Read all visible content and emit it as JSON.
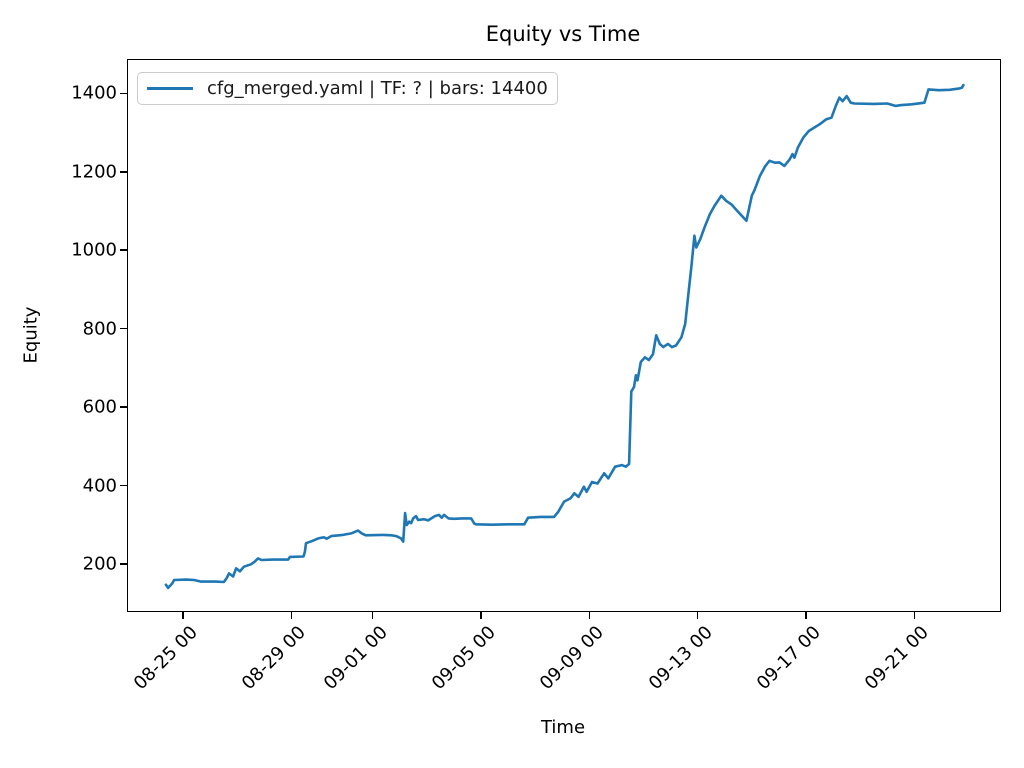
{
  "chart_data": {
    "type": "line",
    "title": "Equity vs Time",
    "xlabel": "Time",
    "ylabel": "Equity",
    "grid": false,
    "legend_position": "upper left",
    "line_color": "#1f77b4",
    "x_unit": "days since 08-25 00:00",
    "xlim": [
      -2.03,
      30.16
    ],
    "ylim": [
      80,
      1485
    ],
    "yticks": [
      200,
      400,
      600,
      800,
      1000,
      1200,
      1400
    ],
    "xticks": {
      "positions": [
        0,
        4,
        7,
        11,
        15,
        19,
        23,
        27
      ],
      "labels": [
        "08-25 00",
        "08-29 00",
        "09-01 00",
        "09-05 00",
        "09-09 00",
        "09-13 00",
        "09-17 00",
        "09-21 00"
      ]
    },
    "series": [
      {
        "name": "cfg_merged.yaml | TF: ? | bars: 14400",
        "points": [
          [
            -0.63,
            147
          ],
          [
            -0.55,
            139
          ],
          [
            -0.4,
            150
          ],
          [
            -0.33,
            159
          ],
          [
            0.13,
            160
          ],
          [
            0.41,
            159
          ],
          [
            0.66,
            155
          ],
          [
            1.2,
            155
          ],
          [
            1.51,
            154
          ],
          [
            1.62,
            165
          ],
          [
            1.7,
            176
          ],
          [
            1.85,
            168
          ],
          [
            1.96,
            189
          ],
          [
            2.1,
            181
          ],
          [
            2.25,
            193
          ],
          [
            2.51,
            199
          ],
          [
            2.65,
            206
          ],
          [
            2.77,
            214
          ],
          [
            2.9,
            210
          ],
          [
            3.3,
            211
          ],
          [
            3.88,
            211
          ],
          [
            3.95,
            218
          ],
          [
            4.45,
            219
          ],
          [
            4.5,
            231
          ],
          [
            4.54,
            253
          ],
          [
            4.75,
            258
          ],
          [
            4.99,
            265
          ],
          [
            5.2,
            268
          ],
          [
            5.3,
            264
          ],
          [
            5.47,
            271
          ],
          [
            5.9,
            274
          ],
          [
            6.21,
            278
          ],
          [
            6.35,
            282
          ],
          [
            6.46,
            285
          ],
          [
            6.6,
            278
          ],
          [
            6.75,
            273
          ],
          [
            7.4,
            274
          ],
          [
            7.7,
            273
          ],
          [
            7.87,
            271
          ],
          [
            8.05,
            265
          ],
          [
            8.13,
            257
          ],
          [
            8.2,
            330
          ],
          [
            8.26,
            299
          ],
          [
            8.35,
            308
          ],
          [
            8.42,
            304
          ],
          [
            8.5,
            316
          ],
          [
            8.6,
            322
          ],
          [
            8.68,
            312
          ],
          [
            8.9,
            314
          ],
          [
            9.05,
            311
          ],
          [
            9.3,
            322
          ],
          [
            9.45,
            325
          ],
          [
            9.55,
            318
          ],
          [
            9.64,
            325
          ],
          [
            9.8,
            316
          ],
          [
            10.01,
            315
          ],
          [
            10.3,
            316
          ],
          [
            10.64,
            316
          ],
          [
            10.75,
            303
          ],
          [
            10.82,
            301
          ],
          [
            11.4,
            300
          ],
          [
            12.0,
            301
          ],
          [
            12.6,
            301
          ],
          [
            12.74,
            318
          ],
          [
            13.2,
            320
          ],
          [
            13.7,
            320
          ],
          [
            13.85,
            333
          ],
          [
            14.07,
            359
          ],
          [
            14.3,
            367
          ],
          [
            14.45,
            380
          ],
          [
            14.6,
            371
          ],
          [
            14.8,
            397
          ],
          [
            14.9,
            384
          ],
          [
            15.1,
            409
          ],
          [
            15.3,
            405
          ],
          [
            15.55,
            431
          ],
          [
            15.7,
            418
          ],
          [
            15.95,
            448
          ],
          [
            16.2,
            452
          ],
          [
            16.35,
            448
          ],
          [
            16.47,
            455
          ],
          [
            16.55,
            640
          ],
          [
            16.65,
            651
          ],
          [
            16.72,
            681
          ],
          [
            16.78,
            668
          ],
          [
            16.9,
            715
          ],
          [
            17.05,
            727
          ],
          [
            17.2,
            720
          ],
          [
            17.35,
            735
          ],
          [
            17.47,
            783
          ],
          [
            17.6,
            761
          ],
          [
            17.73,
            753
          ],
          [
            17.9,
            761
          ],
          [
            18.05,
            753
          ],
          [
            18.2,
            757
          ],
          [
            18.4,
            778
          ],
          [
            18.54,
            812
          ],
          [
            18.65,
            884
          ],
          [
            18.77,
            961
          ],
          [
            18.88,
            1037
          ],
          [
            18.95,
            1007
          ],
          [
            19.1,
            1029
          ],
          [
            19.25,
            1058
          ],
          [
            19.45,
            1092
          ],
          [
            19.62,
            1113
          ],
          [
            19.87,
            1139
          ],
          [
            20.05,
            1126
          ],
          [
            20.24,
            1117
          ],
          [
            20.45,
            1101
          ],
          [
            20.8,
            1075
          ],
          [
            21.0,
            1140
          ],
          [
            21.09,
            1152
          ],
          [
            21.3,
            1190
          ],
          [
            21.5,
            1215
          ],
          [
            21.65,
            1228
          ],
          [
            21.85,
            1223
          ],
          [
            22.02,
            1224
          ],
          [
            22.2,
            1215
          ],
          [
            22.4,
            1232
          ],
          [
            22.5,
            1245
          ],
          [
            22.57,
            1236
          ],
          [
            22.7,
            1262
          ],
          [
            22.9,
            1287
          ],
          [
            23.1,
            1304
          ],
          [
            23.31,
            1313
          ],
          [
            23.5,
            1321
          ],
          [
            23.75,
            1334
          ],
          [
            23.94,
            1338
          ],
          [
            24.1,
            1368
          ],
          [
            24.23,
            1389
          ],
          [
            24.35,
            1380
          ],
          [
            24.5,
            1393
          ],
          [
            24.65,
            1376
          ],
          [
            24.79,
            1374
          ],
          [
            25.5,
            1373
          ],
          [
            26.0,
            1374
          ],
          [
            26.3,
            1368
          ],
          [
            26.52,
            1370
          ],
          [
            26.9,
            1372
          ],
          [
            27.37,
            1376
          ],
          [
            27.52,
            1410
          ],
          [
            27.9,
            1408
          ],
          [
            28.3,
            1409
          ],
          [
            28.63,
            1412
          ],
          [
            28.75,
            1414
          ],
          [
            28.81,
            1421
          ]
        ]
      }
    ]
  }
}
